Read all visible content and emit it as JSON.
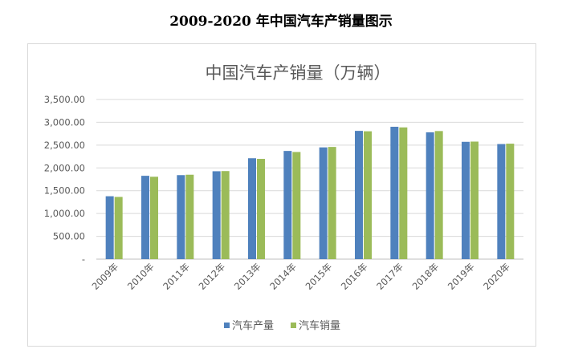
{
  "page_title": "2009-2020 年中国汽车产销量图示",
  "chart_data": {
    "type": "bar",
    "title": "中国汽车产销量（万辆）",
    "categories": [
      "2009年",
      "2010年",
      "2011年",
      "2012年",
      "2013年",
      "2014年",
      "2015年",
      "2016年",
      "2017年",
      "2018年",
      "2019年",
      "2020年"
    ],
    "series": [
      {
        "name": "汽车产量",
        "color": "#4f81bd",
        "values": [
          1379,
          1827,
          1842,
          1927,
          2212,
          2372,
          2450,
          2812,
          2902,
          2781,
          2572,
          2523
        ]
      },
      {
        "name": "汽车销量",
        "color": "#9bbb59",
        "values": [
          1364,
          1806,
          1851,
          1931,
          2198,
          2349,
          2460,
          2803,
          2888,
          2808,
          2577,
          2531
        ]
      }
    ],
    "ylim": [
      0,
      3500
    ],
    "y_ticks": [
      "-",
      "500.00",
      "1,000.00",
      "1,500.00",
      "2,000.00",
      "2,500.00",
      "3,000.00",
      "3,500.00"
    ],
    "grid": true,
    "legend": "bottom"
  }
}
